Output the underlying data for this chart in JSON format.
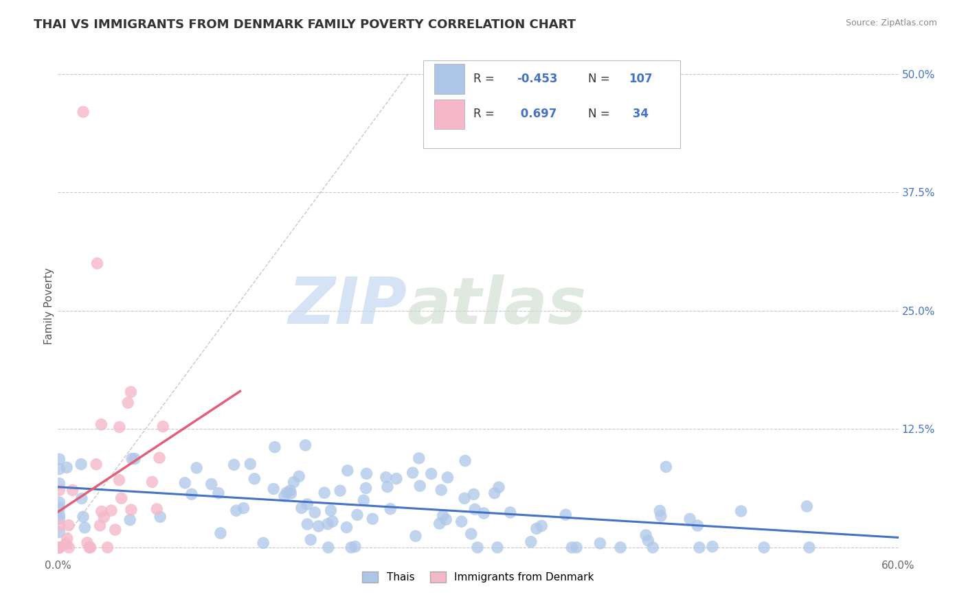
{
  "title": "THAI VS IMMIGRANTS FROM DENMARK FAMILY POVERTY CORRELATION CHART",
  "source": "Source: ZipAtlas.com",
  "ylabel": "Family Poverty",
  "xlim": [
    0.0,
    0.6
  ],
  "ylim": [
    -0.01,
    0.52
  ],
  "ytick_vals": [
    0.0,
    0.125,
    0.25,
    0.375,
    0.5
  ],
  "ytick_labels": [
    "",
    "12.5%",
    "25.0%",
    "37.5%",
    "50.0%"
  ],
  "xtick_vals": [
    0.0,
    0.1,
    0.2,
    0.3,
    0.4,
    0.5,
    0.6
  ],
  "xtick_labels": [
    "0.0%",
    "",
    "",
    "",
    "",
    "",
    "60.0%"
  ],
  "grid_color": "#c8c8c8",
  "background_color": "#ffffff",
  "scatter_blue_color": "#adc6e8",
  "scatter_pink_color": "#f4b8c8",
  "line_blue_color": "#4472c4",
  "line_pink_color": "#e0607a",
  "line_dash_color": "#c8c8c8",
  "R_blue": -0.453,
  "N_blue": 107,
  "R_pink": 0.697,
  "N_pink": 34,
  "legend_label_blue": "Thais",
  "legend_label_pink": "Immigrants from Denmark",
  "watermark_zip": "ZIP",
  "watermark_atlas": "atlas",
  "title_fontsize": 13,
  "axis_label_fontsize": 11,
  "tick_fontsize": 11,
  "legend_fontsize": 11,
  "R_text_color": "#333333",
  "N_val_color": "#4472c4",
  "R_val_color": "#4472c4"
}
